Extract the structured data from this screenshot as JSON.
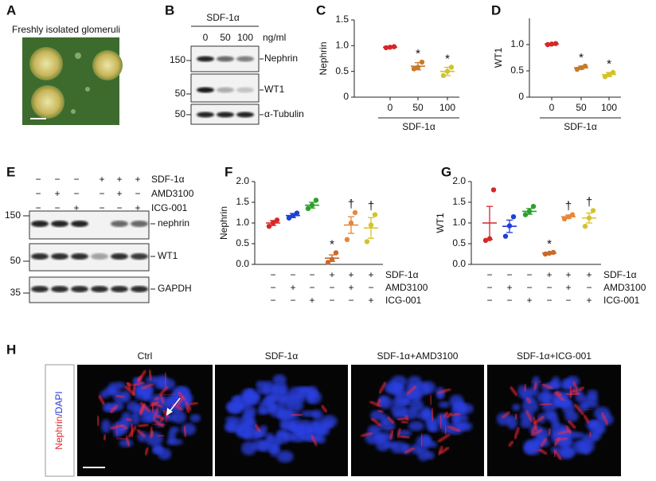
{
  "panels": [
    "A",
    "B",
    "C",
    "D",
    "E",
    "F",
    "G",
    "H"
  ],
  "panel_a": {
    "title": "Freshly isolated glomeruli"
  },
  "panel_b": {
    "treatment": "SDF-1α",
    "doses": [
      "0",
      "50",
      "100"
    ],
    "unit": "ng/ml",
    "bands": [
      "Nephrin",
      "WT1",
      "α-Tubulin"
    ],
    "mw": [
      "150",
      "50",
      "50"
    ]
  },
  "panel_e": {
    "conditions": [
      {
        "label": "SDF-1α",
        "signs": [
          "−",
          "−",
          "−",
          "+",
          "+",
          "+"
        ]
      },
      {
        "label": "AMD3100",
        "signs": [
          "−",
          "+",
          "−",
          "−",
          "+",
          "−"
        ]
      },
      {
        "label": "ICG-001",
        "signs": [
          "−",
          "−",
          "+",
          "−",
          "−",
          "+"
        ]
      }
    ],
    "bands": [
      "nephrin",
      "WT1",
      "GAPDH"
    ],
    "mw": [
      "150",
      "50",
      "35"
    ]
  },
  "panel_h": {
    "titles": [
      "Ctrl",
      "SDF-1α",
      "SDF-1α+AMD3100",
      "SDF-1α+ICG-001"
    ],
    "stain": [
      "Nephrin",
      "/DAPI"
    ]
  },
  "chart_data": [
    {
      "type": "strip",
      "ylabel": "Nephrin",
      "categories": [
        "0",
        "50",
        "100"
      ],
      "xlabel": "SDF-1α",
      "values": [
        0.97,
        0.6,
        0.5
      ],
      "errors": [
        0.01,
        0.07,
        0.08
      ],
      "points": [
        [
          0.96,
          0.97,
          0.98
        ],
        [
          0.55,
          0.58,
          0.68
        ],
        [
          0.42,
          0.5,
          0.58
        ]
      ],
      "colors": [
        "#d62728",
        "#c87a2a",
        "#d4c22a"
      ],
      "ylim": [
        0,
        1.5
      ],
      "yticks": [
        0,
        0.5,
        {
          "value": 1,
          "label": "1.0"
        },
        1.5
      ],
      "annotations": [
        {
          "index": 1,
          "text": "*"
        },
        {
          "index": 2,
          "text": "*"
        }
      ]
    },
    {
      "type": "strip",
      "ylabel": "WT1",
      "categories": [
        "0",
        "50",
        "100"
      ],
      "xlabel": "SDF-1α",
      "values": [
        1.01,
        0.56,
        0.43
      ],
      "errors": [
        0.01,
        0.03,
        0.04
      ],
      "points": [
        [
          1.0,
          1.01,
          1.02
        ],
        [
          0.53,
          0.56,
          0.59
        ],
        [
          0.39,
          0.43,
          0.47
        ]
      ],
      "colors": [
        "#d62728",
        "#c87a2a",
        "#d4c22a"
      ],
      "ylim": [
        0,
        1.5
      ],
      "yticks": [
        0,
        0.5,
        {
          "value": 1,
          "label": "1.0"
        }
      ],
      "annotations": [
        {
          "index": 1,
          "text": "*"
        },
        {
          "index": 2,
          "text": "*"
        }
      ]
    },
    {
      "type": "strip",
      "ylabel": "Nephrin",
      "conditions": [
        {
          "label": "SDF-1α",
          "signs": [
            "−",
            "−",
            "−",
            "+",
            "+",
            "+"
          ]
        },
        {
          "label": "AMD3100",
          "signs": [
            "−",
            "+",
            "−",
            "−",
            "+",
            "−"
          ]
        },
        {
          "label": "ICG-001",
          "signs": [
            "−",
            "−",
            "+",
            "−",
            "−",
            "+"
          ]
        }
      ],
      "values": [
        1.0,
        1.18,
        1.43,
        0.15,
        0.95,
        0.88
      ],
      "errors": [
        0.06,
        0.05,
        0.07,
        0.08,
        0.2,
        0.25
      ],
      "points": [
        [
          0.92,
          1.0,
          1.07
        ],
        [
          1.12,
          1.18,
          1.24
        ],
        [
          1.35,
          1.43,
          1.55
        ],
        [
          0.05,
          0.12,
          0.28
        ],
        [
          0.6,
          1.0,
          1.25
        ],
        [
          0.55,
          0.95,
          1.2
        ]
      ],
      "colors": [
        "#d62728",
        "#1f3fd6",
        "#2ca02c",
        "#c86a2a",
        "#e8873a",
        "#d4c22a"
      ],
      "ylim": [
        0,
        2
      ],
      "yticks": [
        {
          "value": 0,
          "label": "0.0"
        },
        0.5,
        {
          "value": 1,
          "label": "1.0"
        },
        1.5,
        {
          "value": 2,
          "label": "2.0"
        }
      ],
      "annotations": [
        {
          "index": 3,
          "text": "*"
        },
        {
          "index": 4,
          "text": "†"
        },
        {
          "index": 5,
          "text": "†"
        }
      ]
    },
    {
      "type": "strip",
      "ylabel": "WT1",
      "conditions": [
        {
          "label": "SDF-1α",
          "signs": [
            "−",
            "−",
            "−",
            "+",
            "+",
            "+"
          ]
        },
        {
          "label": "AMD3100",
          "signs": [
            "−",
            "+",
            "−",
            "−",
            "+",
            "−"
          ]
        },
        {
          "label": "ICG-001",
          "signs": [
            "−",
            "−",
            "+",
            "−",
            "−",
            "+"
          ]
        }
      ],
      "values": [
        1.0,
        0.92,
        1.28,
        0.27,
        1.15,
        1.12
      ],
      "errors": [
        0.4,
        0.15,
        0.07,
        0.02,
        0.04,
        0.12
      ],
      "points": [
        [
          0.58,
          0.62,
          1.8
        ],
        [
          0.68,
          0.93,
          1.15
        ],
        [
          1.2,
          1.28,
          1.4
        ],
        [
          0.25,
          0.27,
          0.29
        ],
        [
          1.1,
          1.15,
          1.2
        ],
        [
          0.92,
          1.12,
          1.3
        ]
      ],
      "colors": [
        "#d62728",
        "#1f3fd6",
        "#2ca02c",
        "#c86a2a",
        "#e8873a",
        "#d4c22a"
      ],
      "ylim": [
        0,
        2
      ],
      "yticks": [
        {
          "value": 0,
          "label": "0.0"
        },
        0.5,
        {
          "value": 1,
          "label": "1.0"
        },
        1.5,
        {
          "value": 2,
          "label": "2.0"
        }
      ],
      "annotations": [
        {
          "index": 3,
          "text": "*"
        },
        {
          "index": 4,
          "text": "†"
        },
        {
          "index": 5,
          "text": "†"
        }
      ]
    }
  ]
}
